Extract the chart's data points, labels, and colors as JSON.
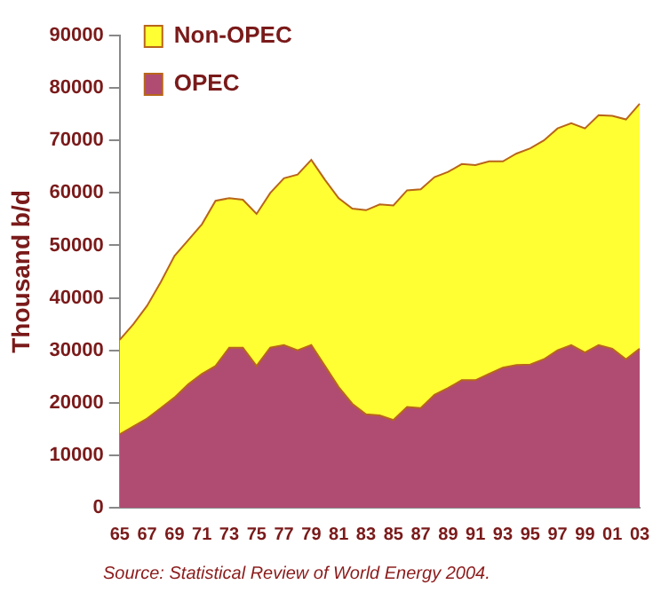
{
  "chart_data": {
    "type": "area",
    "stacked": true,
    "ylabel": "Thousand b/d",
    "categories": [
      "65",
      null,
      "67",
      null,
      "69",
      null,
      "71",
      null,
      "73",
      null,
      "75",
      null,
      "77",
      null,
      "79",
      null,
      "81",
      null,
      "83",
      null,
      "85",
      null,
      "87",
      null,
      "89",
      null,
      "91",
      null,
      "93",
      null,
      "95",
      null,
      "97",
      null,
      "99",
      null,
      "01",
      null,
      "03"
    ],
    "series": [
      {
        "name": "OPEC",
        "color": "#b04c72",
        "values": [
          14000,
          15500,
          17000,
          19000,
          21000,
          23500,
          25500,
          27000,
          30500,
          30500,
          27000,
          30500,
          31000,
          30000,
          31000,
          27000,
          23000,
          19800,
          17800,
          17600,
          16700,
          19200,
          19000,
          21500,
          22800,
          24300,
          24300,
          25500,
          26700,
          27200,
          27300,
          28300,
          30000,
          31000,
          29600,
          31000,
          30300,
          28300,
          30300
        ]
      },
      {
        "name": "Non-OPEC",
        "color": "#ffff33",
        "values": [
          18000,
          19500,
          21500,
          24000,
          27000,
          27500,
          28500,
          31500,
          28500,
          28200,
          29000,
          29500,
          31800,
          33500,
          35300,
          35500,
          36000,
          37200,
          38900,
          40200,
          40900,
          41300,
          41700,
          41500,
          41200,
          41200,
          41000,
          40500,
          39300,
          40300,
          41200,
          41700,
          42300,
          42300,
          42700,
          43800,
          44400,
          45700,
          46700
        ]
      }
    ],
    "ylim": [
      0,
      90000
    ],
    "yticks": [
      0,
      10000,
      20000,
      30000,
      40000,
      50000,
      60000,
      70000,
      80000,
      90000
    ],
    "grid": false,
    "legend": "top left",
    "annotations": [
      "Source: Statistical Review of World Energy 2004."
    ]
  }
}
